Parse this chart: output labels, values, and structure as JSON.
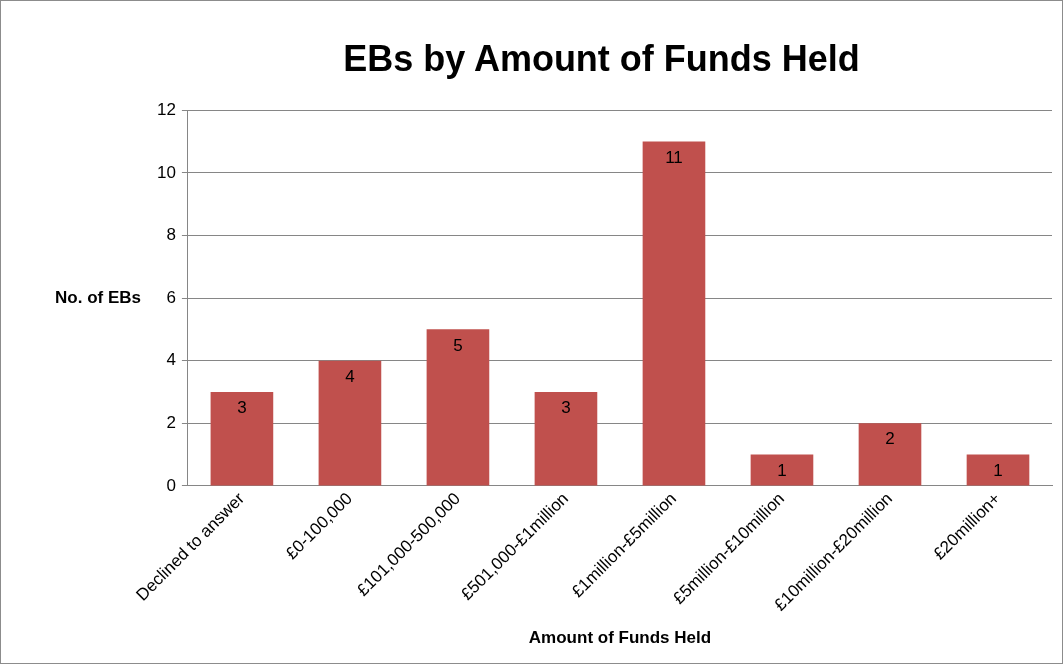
{
  "chart_data": {
    "type": "bar",
    "title": "EBs by Amount of Funds Held",
    "xlabel": "Amount of Funds Held",
    "ylabel": "No. of EBs",
    "categories": [
      "Declined to answer",
      "£0-100,000",
      "£101,000-500,000",
      "£501,000-£1million",
      "£1million-£5million",
      "£5million-£10million",
      "£10million-£20million",
      "£20million+"
    ],
    "values": [
      3,
      4,
      5,
      3,
      11,
      1,
      2,
      1
    ],
    "color": "#c0504d",
    "ylim": [
      0,
      12
    ],
    "yticks": [
      0,
      2,
      4,
      6,
      8,
      10,
      12
    ],
    "grid": "y",
    "data_labels": true,
    "legend": false
  }
}
